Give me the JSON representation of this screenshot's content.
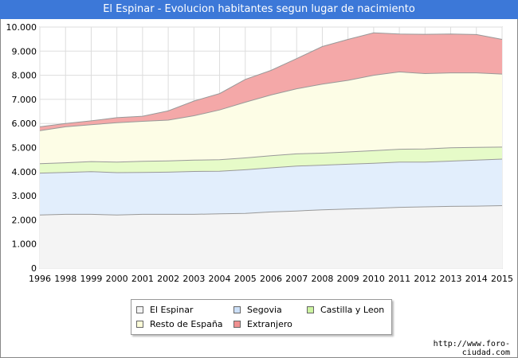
{
  "chart_data": {
    "type": "area",
    "stacked": true,
    "title": "El Espinar - Evolucion habitantes segun lugar de nacimiento",
    "x": [
      1996,
      1998,
      1999,
      2000,
      2001,
      2002,
      2003,
      2004,
      2005,
      2006,
      2007,
      2008,
      2009,
      2010,
      2011,
      2012,
      2013,
      2014,
      2015
    ],
    "x_tick_labels": [
      "1996",
      "1998",
      "1999",
      "2000",
      "2001",
      "2002",
      "2003",
      "2004",
      "2005",
      "2006",
      "2007",
      "2008",
      "2009",
      "2010",
      "2011",
      "2012",
      "2013",
      "2014",
      "2015"
    ],
    "ylim": [
      0,
      10000
    ],
    "y_ticks": [
      0,
      1000,
      2000,
      3000,
      4000,
      5000,
      6000,
      7000,
      8000,
      9000,
      10000
    ],
    "y_tick_labels": [
      "0",
      "1.000",
      "2.000",
      "3.000",
      "4.000",
      "5.000",
      "6.000",
      "7.000",
      "8.000",
      "9.000",
      "10.000"
    ],
    "grid": true,
    "legend_position": "bottom",
    "series": [
      {
        "name": "El Espinar",
        "color": "#f4f4f4",
        "line": "#999999",
        "values": [
          2200,
          2230,
          2230,
          2200,
          2230,
          2230,
          2230,
          2250,
          2270,
          2330,
          2370,
          2420,
          2450,
          2480,
          2520,
          2540,
          2560,
          2570,
          2590
        ]
      },
      {
        "name": "Segovia",
        "color": "#e2eefc",
        "line": "#999999",
        "values": [
          1740,
          1740,
          1770,
          1760,
          1740,
          1750,
          1780,
          1770,
          1810,
          1830,
          1860,
          1850,
          1860,
          1870,
          1880,
          1860,
          1880,
          1910,
          1930
        ]
      },
      {
        "name": "Castilla y Leon",
        "color": "#e6fbc8",
        "line": "#999999",
        "values": [
          390,
          400,
          420,
          440,
          460,
          470,
          470,
          480,
          490,
          500,
          510,
          500,
          510,
          520,
          530,
          540,
          550,
          530,
          500
        ]
      },
      {
        "name": "Resto de España",
        "color": "#fdfde6",
        "line": "#999999",
        "values": [
          1370,
          1490,
          1530,
          1630,
          1660,
          1690,
          1840,
          2060,
          2310,
          2520,
          2700,
          2860,
          2970,
          3130,
          3210,
          3130,
          3110,
          3090,
          3030
        ]
      },
      {
        "name": "Extranjero",
        "color": "#f4a8a8",
        "line": "#999999",
        "values": [
          160,
          140,
          160,
          210,
          210,
          380,
          610,
          680,
          950,
          1020,
          1250,
          1560,
          1700,
          1760,
          1570,
          1630,
          1610,
          1590,
          1440
        ]
      }
    ]
  },
  "legend_labels": {
    "el_espinar": "El Espinar",
    "segovia": "Segovia",
    "castilla": "Castilla y Leon",
    "resto": "Resto de España",
    "extranjero": "Extranjero"
  },
  "colors": {
    "title_bar": "#3c78d8",
    "el_espinar": "#f4f4f4",
    "segovia": "#cce0f8",
    "castilla": "#ccf4a0",
    "resto": "#fcfcd8",
    "extranjero": "#f09090"
  },
  "footer": {
    "url": "http://www.foro-ciudad.com"
  }
}
